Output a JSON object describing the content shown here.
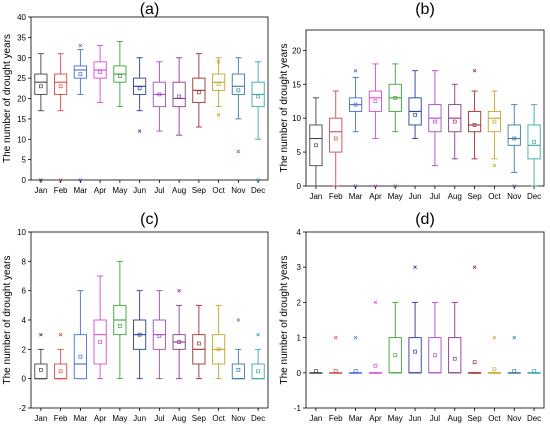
{
  "chart_data": [
    {
      "type": "box",
      "title": "(a)",
      "ylabel": "The number of drought years",
      "xlabel": "",
      "ylim": [
        0,
        40
      ],
      "yticks": [
        0,
        5,
        10,
        15,
        20,
        25,
        30,
        35,
        40
      ],
      "categories": [
        "Jan",
        "Feb",
        "Mar",
        "Apr",
        "May",
        "Jun",
        "Jul",
        "Aug",
        "Sep",
        "Oct",
        "Nov",
        "Dec"
      ],
      "colors": [
        "#444444",
        "#d64a4a",
        "#4a6bd6",
        "#d84ad0",
        "#3aa33a",
        "#2a3f9c",
        "#a54ac0",
        "#8a3a8a",
        "#9c3030",
        "#c2a52a",
        "#3a7ca5",
        "#3aa6b0"
      ],
      "boxes": [
        {
          "whisker_low": 17,
          "q1": 21,
          "median": 24,
          "q3": 26,
          "whisker_high": 31,
          "mean": 23,
          "outliers": [
            0
          ]
        },
        {
          "whisker_low": 17,
          "q1": 21,
          "median": 24,
          "q3": 26,
          "whisker_high": 31,
          "mean": 23,
          "outliers": [
            0
          ]
        },
        {
          "whisker_low": 21,
          "q1": 25,
          "median": 27,
          "q3": 28,
          "whisker_high": 32,
          "mean": 26,
          "outliers": [
            0,
            33
          ]
        },
        {
          "whisker_low": 19,
          "q1": 25,
          "median": 27,
          "q3": 29,
          "whisker_high": 33,
          "mean": 26.5,
          "outliers": []
        },
        {
          "whisker_low": 18,
          "q1": 24,
          "median": 26,
          "q3": 28,
          "whisker_high": 34,
          "mean": 25.5,
          "outliers": []
        },
        {
          "whisker_low": 17,
          "q1": 21,
          "median": 23,
          "q3": 25,
          "whisker_high": 30,
          "mean": 22.5,
          "outliers": [
            12
          ]
        },
        {
          "whisker_low": 12,
          "q1": 18,
          "median": 21,
          "q3": 24,
          "whisker_high": 29,
          "mean": 21,
          "outliers": []
        },
        {
          "whisker_low": 11,
          "q1": 18,
          "median": 20,
          "q3": 24,
          "whisker_high": 30,
          "mean": 20.5,
          "outliers": []
        },
        {
          "whisker_low": 13,
          "q1": 19,
          "median": 22,
          "q3": 25,
          "whisker_high": 31,
          "mean": 21.5,
          "outliers": []
        },
        {
          "whisker_low": 18,
          "q1": 22,
          "median": 24,
          "q3": 26,
          "whisker_high": 30,
          "mean": 23.5,
          "outliers": [
            16,
            29
          ]
        },
        {
          "whisker_low": 15,
          "q1": 21,
          "median": 23,
          "q3": 26,
          "whisker_high": 30,
          "mean": 22,
          "outliers": [
            7
          ]
        },
        {
          "whisker_low": 10,
          "q1": 18,
          "median": 21,
          "q3": 24,
          "whisker_high": 29,
          "mean": 20.5,
          "outliers": [
            0
          ]
        }
      ]
    },
    {
      "type": "box",
      "title": "(b)",
      "ylabel": "The number of drought years",
      "xlabel": "",
      "ylim": [
        0,
        23
      ],
      "yticks": [
        0,
        5,
        10,
        15,
        20
      ],
      "categories": [
        "Jan",
        "Feb",
        "Mar",
        "Apr",
        "May",
        "Jun",
        "Jul",
        "Aug",
        "Sep",
        "Oct",
        "Nov",
        "Dec"
      ],
      "colors": [
        "#444444",
        "#d64a4a",
        "#4a6bd6",
        "#d84ad0",
        "#3aa33a",
        "#2a3f9c",
        "#a54ac0",
        "#8a3a8a",
        "#9c3030",
        "#c2a52a",
        "#3a7ca5",
        "#3aa6b0"
      ],
      "boxes": [
        {
          "whisker_low": 0,
          "q1": 3,
          "median": 7,
          "q3": 9,
          "whisker_high": 13,
          "mean": 6,
          "outliers": []
        },
        {
          "whisker_low": 0,
          "q1": 5,
          "median": 8,
          "q3": 10,
          "whisker_high": 14,
          "mean": 7,
          "outliers": []
        },
        {
          "whisker_low": 8,
          "q1": 11,
          "median": 12,
          "q3": 13,
          "whisker_high": 16,
          "mean": 12,
          "outliers": [
            0,
            17
          ]
        },
        {
          "whisker_low": 7,
          "q1": 11,
          "median": 13,
          "q3": 14,
          "whisker_high": 18,
          "mean": 12.5,
          "outliers": [
            0
          ]
        },
        {
          "whisker_low": 8,
          "q1": 11,
          "median": 13,
          "q3": 15,
          "whisker_high": 18,
          "mean": 13,
          "outliers": [
            0
          ]
        },
        {
          "whisker_low": 7,
          "q1": 9,
          "median": 11,
          "q3": 13,
          "whisker_high": 17,
          "mean": 10.5,
          "outliers": []
        },
        {
          "whisker_low": 3,
          "q1": 8,
          "median": 10,
          "q3": 12,
          "whisker_high": 17,
          "mean": 9.5,
          "outliers": []
        },
        {
          "whisker_low": 4,
          "q1": 8,
          "median": 10,
          "q3": 12,
          "whisker_high": 15,
          "mean": 9.5,
          "outliers": []
        },
        {
          "whisker_low": 4,
          "q1": 8,
          "median": 9,
          "q3": 11,
          "whisker_high": 14,
          "mean": 9,
          "outliers": [
            17
          ]
        },
        {
          "whisker_low": 4,
          "q1": 8,
          "median": 10,
          "q3": 11,
          "whisker_high": 14,
          "mean": 9.5,
          "outliers": [
            3
          ]
        },
        {
          "whisker_low": 2,
          "q1": 6,
          "median": 7,
          "q3": 9,
          "whisker_high": 12,
          "mean": 7,
          "outliers": [
            0
          ]
        },
        {
          "whisker_low": 0,
          "q1": 4,
          "median": 6,
          "q3": 9,
          "whisker_high": 12,
          "mean": 6.5,
          "outliers": []
        }
      ]
    },
    {
      "type": "box",
      "title": "(c)",
      "ylabel": "The number of drought years",
      "xlabel": "",
      "ylim": [
        -2,
        10
      ],
      "yticks": [
        -2,
        0,
        2,
        4,
        6,
        8,
        10
      ],
      "categories": [
        "Jan",
        "Feb",
        "Mar",
        "Apr",
        "May",
        "Jun",
        "Jul",
        "Aug",
        "Sep",
        "Oct",
        "Nov",
        "Dec"
      ],
      "colors": [
        "#444444",
        "#d64a4a",
        "#4a6bd6",
        "#d84ad0",
        "#3aa33a",
        "#2a3f9c",
        "#a54ac0",
        "#8a3a8a",
        "#9c3030",
        "#c2a52a",
        "#3a7ca5",
        "#3aa6b0"
      ],
      "boxes": [
        {
          "whisker_low": 0,
          "q1": 0,
          "median": 0,
          "q3": 1,
          "whisker_high": 2,
          "mean": 0.6,
          "outliers": [
            3
          ]
        },
        {
          "whisker_low": 0,
          "q1": 0,
          "median": 0,
          "q3": 1,
          "whisker_high": 2,
          "mean": 0.5,
          "outliers": [
            3
          ]
        },
        {
          "whisker_low": 0,
          "q1": 0,
          "median": 1,
          "q3": 3,
          "whisker_high": 6,
          "mean": 1.5,
          "outliers": []
        },
        {
          "whisker_low": 0,
          "q1": 1,
          "median": 3,
          "q3": 4,
          "whisker_high": 7,
          "mean": 2.5,
          "outliers": []
        },
        {
          "whisker_low": 0,
          "q1": 3,
          "median": 4,
          "q3": 5,
          "whisker_high": 8,
          "mean": 3.6,
          "outliers": []
        },
        {
          "whisker_low": 0,
          "q1": 2,
          "median": 3,
          "q3": 4,
          "whisker_high": 6,
          "mean": 3,
          "outliers": []
        },
        {
          "whisker_low": 0,
          "q1": 2,
          "median": 3,
          "q3": 4,
          "whisker_high": 6,
          "mean": 2.9,
          "outliers": []
        },
        {
          "whisker_low": 0,
          "q1": 2,
          "median": 2.5,
          "q3": 3,
          "whisker_high": 5,
          "mean": 2.5,
          "outliers": [
            6
          ]
        },
        {
          "whisker_low": 0,
          "q1": 1,
          "median": 2,
          "q3": 3,
          "whisker_high": 5,
          "mean": 2.4,
          "outliers": []
        },
        {
          "whisker_low": 0,
          "q1": 1,
          "median": 2,
          "q3": 3,
          "whisker_high": 5,
          "mean": 2,
          "outliers": []
        },
        {
          "whisker_low": 0,
          "q1": 0,
          "median": 0,
          "q3": 1,
          "whisker_high": 2,
          "mean": 0.6,
          "outliers": [
            4
          ]
        },
        {
          "whisker_low": 0,
          "q1": 0,
          "median": 0,
          "q3": 1,
          "whisker_high": 2,
          "mean": 0.5,
          "outliers": [
            3
          ]
        }
      ]
    },
    {
      "type": "box",
      "title": "(d)",
      "ylabel": "The number of drought years",
      "xlabel": "",
      "ylim": [
        -1,
        4
      ],
      "yticks": [
        -1,
        0,
        1,
        2,
        3,
        4
      ],
      "categories": [
        "Jan",
        "Feb",
        "Mar",
        "Apr",
        "May",
        "Jun",
        "Jul",
        "Aug",
        "Sep",
        "Oct",
        "Nov",
        "Dec"
      ],
      "colors": [
        "#444444",
        "#d64a4a",
        "#4a6bd6",
        "#d84ad0",
        "#3aa33a",
        "#2a3f9c",
        "#a54ac0",
        "#8a3a8a",
        "#9c3030",
        "#c2a52a",
        "#3a7ca5",
        "#3aa6b0"
      ],
      "boxes": [
        {
          "whisker_low": 0,
          "q1": 0,
          "median": 0,
          "q3": 0,
          "whisker_high": 0,
          "mean": 0.05,
          "outliers": []
        },
        {
          "whisker_low": 0,
          "q1": 0,
          "median": 0,
          "q3": 0,
          "whisker_high": 0,
          "mean": 0.05,
          "outliers": [
            1
          ]
        },
        {
          "whisker_low": 0,
          "q1": 0,
          "median": 0,
          "q3": 0,
          "whisker_high": 0,
          "mean": 0.05,
          "outliers": [
            1
          ]
        },
        {
          "whisker_low": 0,
          "q1": 0,
          "median": 0,
          "q3": 0,
          "whisker_high": 0,
          "mean": 0.2,
          "outliers": [
            2
          ]
        },
        {
          "whisker_low": 0,
          "q1": 0,
          "median": 0,
          "q3": 1,
          "whisker_high": 2,
          "mean": 0.5,
          "outliers": []
        },
        {
          "whisker_low": 0,
          "q1": 0,
          "median": 0,
          "q3": 1,
          "whisker_high": 2,
          "mean": 0.6,
          "outliers": [
            3
          ]
        },
        {
          "whisker_low": 0,
          "q1": 0,
          "median": 0,
          "q3": 1,
          "whisker_high": 2,
          "mean": 0.5,
          "outliers": []
        },
        {
          "whisker_low": 0,
          "q1": 0,
          "median": 0,
          "q3": 1,
          "whisker_high": 2,
          "mean": 0.4,
          "outliers": []
        },
        {
          "whisker_low": 0,
          "q1": 0,
          "median": 0,
          "q3": 0,
          "whisker_high": 0,
          "mean": 0.3,
          "outliers": [
            3
          ]
        },
        {
          "whisker_low": 0,
          "q1": 0,
          "median": 0,
          "q3": 0,
          "whisker_high": 0,
          "mean": 0.1,
          "outliers": [
            1
          ]
        },
        {
          "whisker_low": 0,
          "q1": 0,
          "median": 0,
          "q3": 0,
          "whisker_high": 0,
          "mean": 0.05,
          "outliers": [
            1
          ]
        },
        {
          "whisker_low": 0,
          "q1": 0,
          "median": 0,
          "q3": 0,
          "whisker_high": 0,
          "mean": 0.05,
          "outliers": []
        }
      ]
    }
  ]
}
